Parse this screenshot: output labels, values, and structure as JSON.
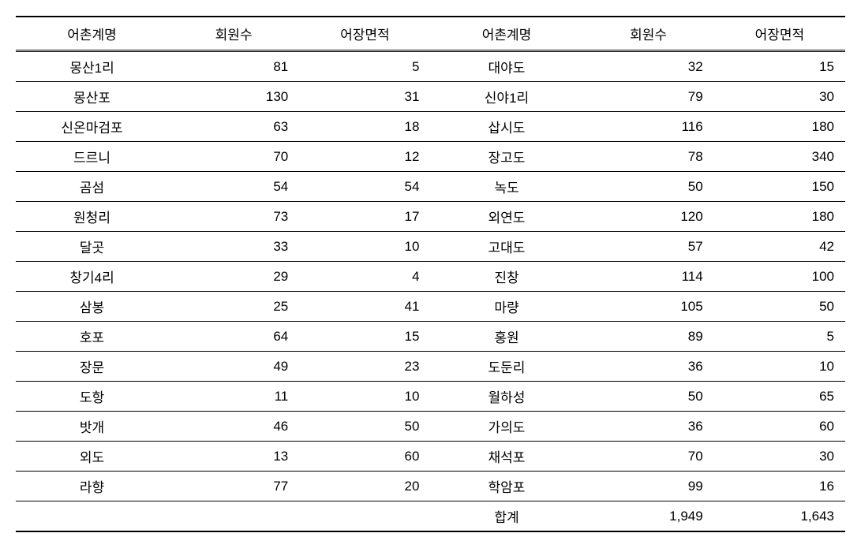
{
  "table": {
    "headers": [
      "어촌계명",
      "회원수",
      "어장면적",
      "어촌계명",
      "회원수",
      "어장면적"
    ],
    "rows": [
      [
        "몽산1리",
        "81",
        "5",
        "대야도",
        "32",
        "15"
      ],
      [
        "몽산포",
        "130",
        "31",
        "신야1리",
        "79",
        "30"
      ],
      [
        "신온마검포",
        "63",
        "18",
        "삽시도",
        "116",
        "180"
      ],
      [
        "드르니",
        "70",
        "12",
        "장고도",
        "78",
        "340"
      ],
      [
        "곰섬",
        "54",
        "54",
        "녹도",
        "50",
        "150"
      ],
      [
        "원청리",
        "73",
        "17",
        "외연도",
        "120",
        "180"
      ],
      [
        "달곳",
        "33",
        "10",
        "고대도",
        "57",
        "42"
      ],
      [
        "창기4리",
        "29",
        "4",
        "진창",
        "114",
        "100"
      ],
      [
        "삼봉",
        "25",
        "41",
        "마량",
        "105",
        "50"
      ],
      [
        "호포",
        "64",
        "15",
        "홍원",
        "89",
        "5"
      ],
      [
        "장문",
        "49",
        "23",
        "도둔리",
        "36",
        "10"
      ],
      [
        "도항",
        "11",
        "10",
        "월하성",
        "50",
        "65"
      ],
      [
        "밧개",
        "46",
        "50",
        "가의도",
        "36",
        "60"
      ],
      [
        "외도",
        "13",
        "60",
        "채석포",
        "70",
        "30"
      ],
      [
        "라향",
        "77",
        "20",
        "학암포",
        "99",
        "16"
      ],
      [
        "",
        "",
        "",
        "합계",
        "1,949",
        "1,643"
      ]
    ],
    "styling": {
      "border_color": "#000000",
      "background_color": "#ffffff",
      "header_border_top_width": 2,
      "header_border_bottom_style": "double",
      "row_border_width": 1,
      "last_row_border_width": 2,
      "font_size": 17,
      "cell_padding_v": 6,
      "cell_padding_h": 14,
      "name_align": "center",
      "num_align": "right"
    }
  }
}
